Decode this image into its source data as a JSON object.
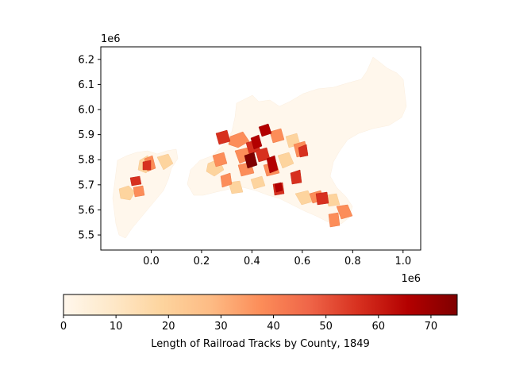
{
  "chart_data": {
    "type": "choropleth",
    "title": "",
    "x_axis": {
      "ticks": [
        0.0,
        0.2,
        0.4,
        0.6,
        0.8,
        1.0
      ],
      "tick_labels": [
        "0.0",
        "0.2",
        "0.4",
        "0.6",
        "0.8",
        "1.0"
      ],
      "offset_label": "1e6",
      "range": [
        -0.2,
        1.07
      ]
    },
    "y_axis": {
      "ticks": [
        5.5,
        5.6,
        5.7,
        5.8,
        5.9,
        6.0,
        6.1,
        6.2
      ],
      "tick_labels": [
        "5.5",
        "5.6",
        "5.7",
        "5.8",
        "5.9",
        "6.0",
        "6.1",
        "6.2"
      ],
      "offset_label": "1e6",
      "range": [
        5.44,
        6.25
      ]
    },
    "colorbar": {
      "label": "Length of Railroad Tracks by County, 1849",
      "colormap": "OrRd",
      "range": [
        0,
        75
      ],
      "ticks": [
        0,
        10,
        20,
        30,
        40,
        50,
        60,
        70
      ],
      "tick_labels": [
        "0",
        "10",
        "20",
        "30",
        "40",
        "50",
        "60",
        "70"
      ],
      "orientation": "horizontal",
      "placement": "bottom"
    },
    "grid": false
  }
}
